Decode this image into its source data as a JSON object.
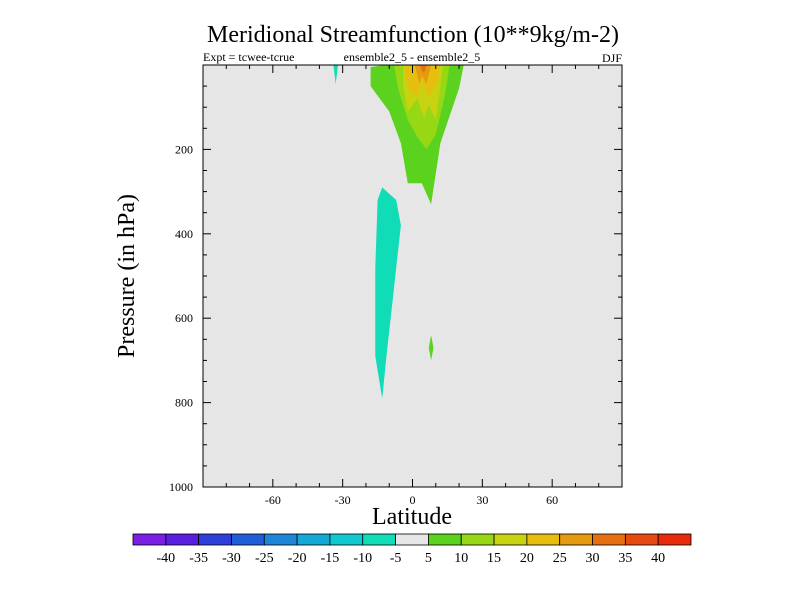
{
  "chart_data": {
    "type": "contour",
    "title": "Meridional Streamfunction (10**9kg/m-2)",
    "subtitle_left": "Expt = tcwee-tcrue",
    "subtitle_center": "ensemble2_5 - ensemble2_5",
    "subtitle_right": "DJF",
    "xlabel": "Latitude",
    "ylabel": "Pressure (in hPa)",
    "xlim": [
      -90,
      90
    ],
    "ylim": [
      1000,
      0
    ],
    "x_ticks": [
      {
        "value": -60,
        "label": "-60"
      },
      {
        "value": -30,
        "label": "-30"
      },
      {
        "value": 0,
        "label": "0"
      },
      {
        "value": 30,
        "label": "30"
      },
      {
        "value": 60,
        "label": "60"
      }
    ],
    "y_ticks": [
      {
        "value": 200,
        "label": "200"
      },
      {
        "value": 400,
        "label": "400"
      },
      {
        "value": 600,
        "label": "600"
      },
      {
        "value": 800,
        "label": "800"
      },
      {
        "value": 1000,
        "label": "1000"
      }
    ],
    "background_color": "#e6e6e6",
    "colorbar": {
      "labels": [
        "-40",
        "-35",
        "-30",
        "-25",
        "-20",
        "-15",
        "-10",
        "-5",
        "5",
        "10",
        "15",
        "20",
        "25",
        "30",
        "35",
        "40"
      ],
      "colors": [
        "#7b1ee6",
        "#5a1ee0",
        "#2e3ed8",
        "#1e5ed8",
        "#1e86d8",
        "#14a8d6",
        "#10c8d0",
        "#10dcb8",
        "#e6e6e6",
        "#5ad21e",
        "#96d814",
        "#c8d210",
        "#e6be10",
        "#e69a10",
        "#e67010",
        "#e64a10",
        "#e62a0a"
      ]
    },
    "regions": [
      {
        "label": "positive 5-10",
        "color": "#5ad21e",
        "polygon": [
          [
            -12,
            0
          ],
          [
            22,
            0
          ],
          [
            20,
            55
          ],
          [
            12,
            185
          ],
          [
            8,
            330
          ],
          [
            4,
            280
          ],
          [
            -2,
            280
          ],
          [
            -5,
            185
          ],
          [
            -10,
            110
          ],
          [
            -18,
            50
          ],
          [
            -18,
            5
          ]
        ]
      },
      {
        "label": "positive 10-15",
        "color": "#96d814",
        "polygon": [
          [
            -8,
            0
          ],
          [
            16,
            0
          ],
          [
            14,
            70
          ],
          [
            10,
            165
          ],
          [
            6,
            200
          ],
          [
            2,
            170
          ],
          [
            -2,
            130
          ],
          [
            -6,
            60
          ]
        ]
      },
      {
        "label": "positive 15-20",
        "color": "#c8d210",
        "polygon": [
          [
            -4,
            0
          ],
          [
            13,
            0
          ],
          [
            12,
            50
          ],
          [
            10,
            130
          ],
          [
            7,
            95
          ],
          [
            5,
            125
          ],
          [
            2,
            80
          ],
          [
            -2,
            110
          ],
          [
            -4,
            50
          ]
        ]
      },
      {
        "label": "positive 20-25",
        "color": "#e6be10",
        "polygon": [
          [
            -3,
            0
          ],
          [
            12,
            0
          ],
          [
            11,
            40
          ],
          [
            7,
            75
          ],
          [
            4,
            35
          ],
          [
            2,
            75
          ],
          [
            -1,
            60
          ],
          [
            -3,
            30
          ]
        ]
      },
      {
        "label": "positive 25-30",
        "color": "#e69a10",
        "polygon": [
          [
            1,
            0
          ],
          [
            8,
            0
          ],
          [
            6,
            45
          ],
          [
            4,
            25
          ],
          [
            3,
            45
          ]
        ]
      },
      {
        "label": "positive 30-35",
        "color": "#e67010",
        "polygon": [
          [
            3,
            0
          ],
          [
            6,
            0
          ],
          [
            5,
            20
          ],
          [
            4,
            12
          ]
        ]
      },
      {
        "label": "negative -5 to -10 (upper)",
        "color": "#10dcb8",
        "polygon": [
          [
            -32,
            0
          ],
          [
            -34,
            0
          ],
          [
            -33,
            45
          ]
        ]
      },
      {
        "label": "negative -5 to -10 (column)",
        "color": "#10dcb8",
        "polygon": [
          [
            -13,
            290
          ],
          [
            -7,
            320
          ],
          [
            -5,
            380
          ],
          [
            -7,
            480
          ],
          [
            -9,
            580
          ],
          [
            -11,
            680
          ],
          [
            -13,
            790
          ],
          [
            -16,
            690
          ],
          [
            -16,
            480
          ],
          [
            -15,
            320
          ]
        ]
      },
      {
        "label": "positive 5-10 (small)",
        "color": "#5ad21e",
        "polygon": [
          [
            8,
            640
          ],
          [
            9,
            670
          ],
          [
            8,
            700
          ],
          [
            7,
            670
          ]
        ]
      }
    ]
  }
}
